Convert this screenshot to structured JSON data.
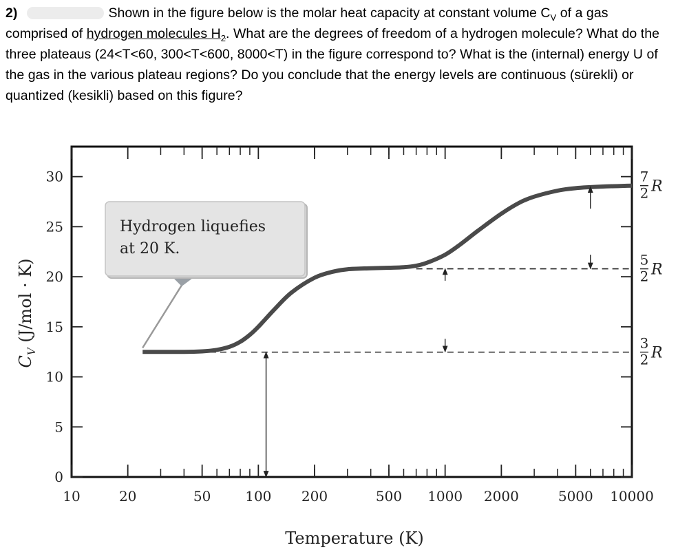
{
  "question": {
    "number": "2)",
    "line1": "Shown in the figure below is the molar heat capacity at constant volume C",
    "cv_sub": "V",
    "line1b": " of a gas comprised of ",
    "underlined": "hydrogen molecules H",
    "h2_sub": "2",
    "rest": ". What are the degrees of freedom of a hydrogen molecule? What do the three plateaus (24<T<60, 300<T<600, 8000<T) in the figure correspond to? What is the (internal) energy U of the gas in the various plateau regions? Do you conclude that the energy levels are continuous (sürekli) or quantized (kesikli) based on this figure?"
  },
  "chart_data": {
    "type": "line",
    "xscale": "log",
    "xlim": [
      10,
      10000
    ],
    "ylim": [
      0,
      33
    ],
    "x_ticks": [
      10,
      20,
      50,
      100,
      200,
      500,
      1000,
      2000,
      5000,
      10000
    ],
    "x_tick_labels": [
      "10",
      "20",
      "50",
      "100",
      "200",
      "500",
      "1000",
      "2000",
      "5000",
      "10000"
    ],
    "y_ticks": [
      0,
      5,
      10,
      15,
      20,
      25,
      30
    ],
    "y_tick_labels": [
      "0",
      "5",
      "10",
      "15",
      "20",
      "25",
      "30"
    ],
    "xlabel": "Temperature (K)",
    "ylabel_main": "C",
    "ylabel_sub": "V",
    "ylabel_units": " (J/mol · K)",
    "series": [
      {
        "x": [
          24,
          30,
          40,
          50,
          60,
          70,
          80,
          90,
          100,
          120,
          150,
          200,
          250,
          300,
          400,
          500,
          600,
          700,
          800,
          1000,
          1200,
          1500,
          2000,
          2500,
          3000,
          4000,
          5000,
          6000,
          8000,
          10000
        ],
        "y": [
          12.5,
          12.5,
          12.5,
          12.55,
          12.7,
          13.0,
          13.5,
          14.2,
          15.0,
          16.6,
          18.4,
          19.9,
          20.5,
          20.75,
          20.85,
          20.9,
          20.95,
          21.1,
          21.4,
          22.2,
          23.2,
          24.6,
          26.3,
          27.4,
          28.0,
          28.6,
          28.85,
          28.95,
          29.05,
          29.1
        ],
        "color": "#4a4a4a"
      }
    ],
    "reference_lines": [
      {
        "label_num": "3",
        "label_den": "2",
        "label_sym": "R",
        "y": 12.47
      },
      {
        "label_num": "5",
        "label_den": "2",
        "label_sym": "R",
        "y": 20.79
      },
      {
        "label_num": "7",
        "label_den": "2",
        "label_sym": "R",
        "y": 29.1
      }
    ],
    "annotation": {
      "line1": "Hydrogen liquefies",
      "line2": "at 20 K.",
      "pointer_x": 24,
      "pointer_y": 12.9
    },
    "arrows": [
      {
        "x": 110,
        "y_from": 0,
        "y_to": 12.47,
        "type": "double"
      },
      {
        "x": 1000,
        "y_from": 13.8,
        "y_to": 12.5,
        "type": "single"
      },
      {
        "x": 1000,
        "y_from": 19.6,
        "y_to": 20.8,
        "type": "single"
      },
      {
        "x": 6000,
        "y_from": 22.2,
        "y_to": 20.8,
        "type": "single"
      },
      {
        "x": 6000,
        "y_from": 26.8,
        "y_to": 29.0,
        "type": "single"
      }
    ]
  }
}
